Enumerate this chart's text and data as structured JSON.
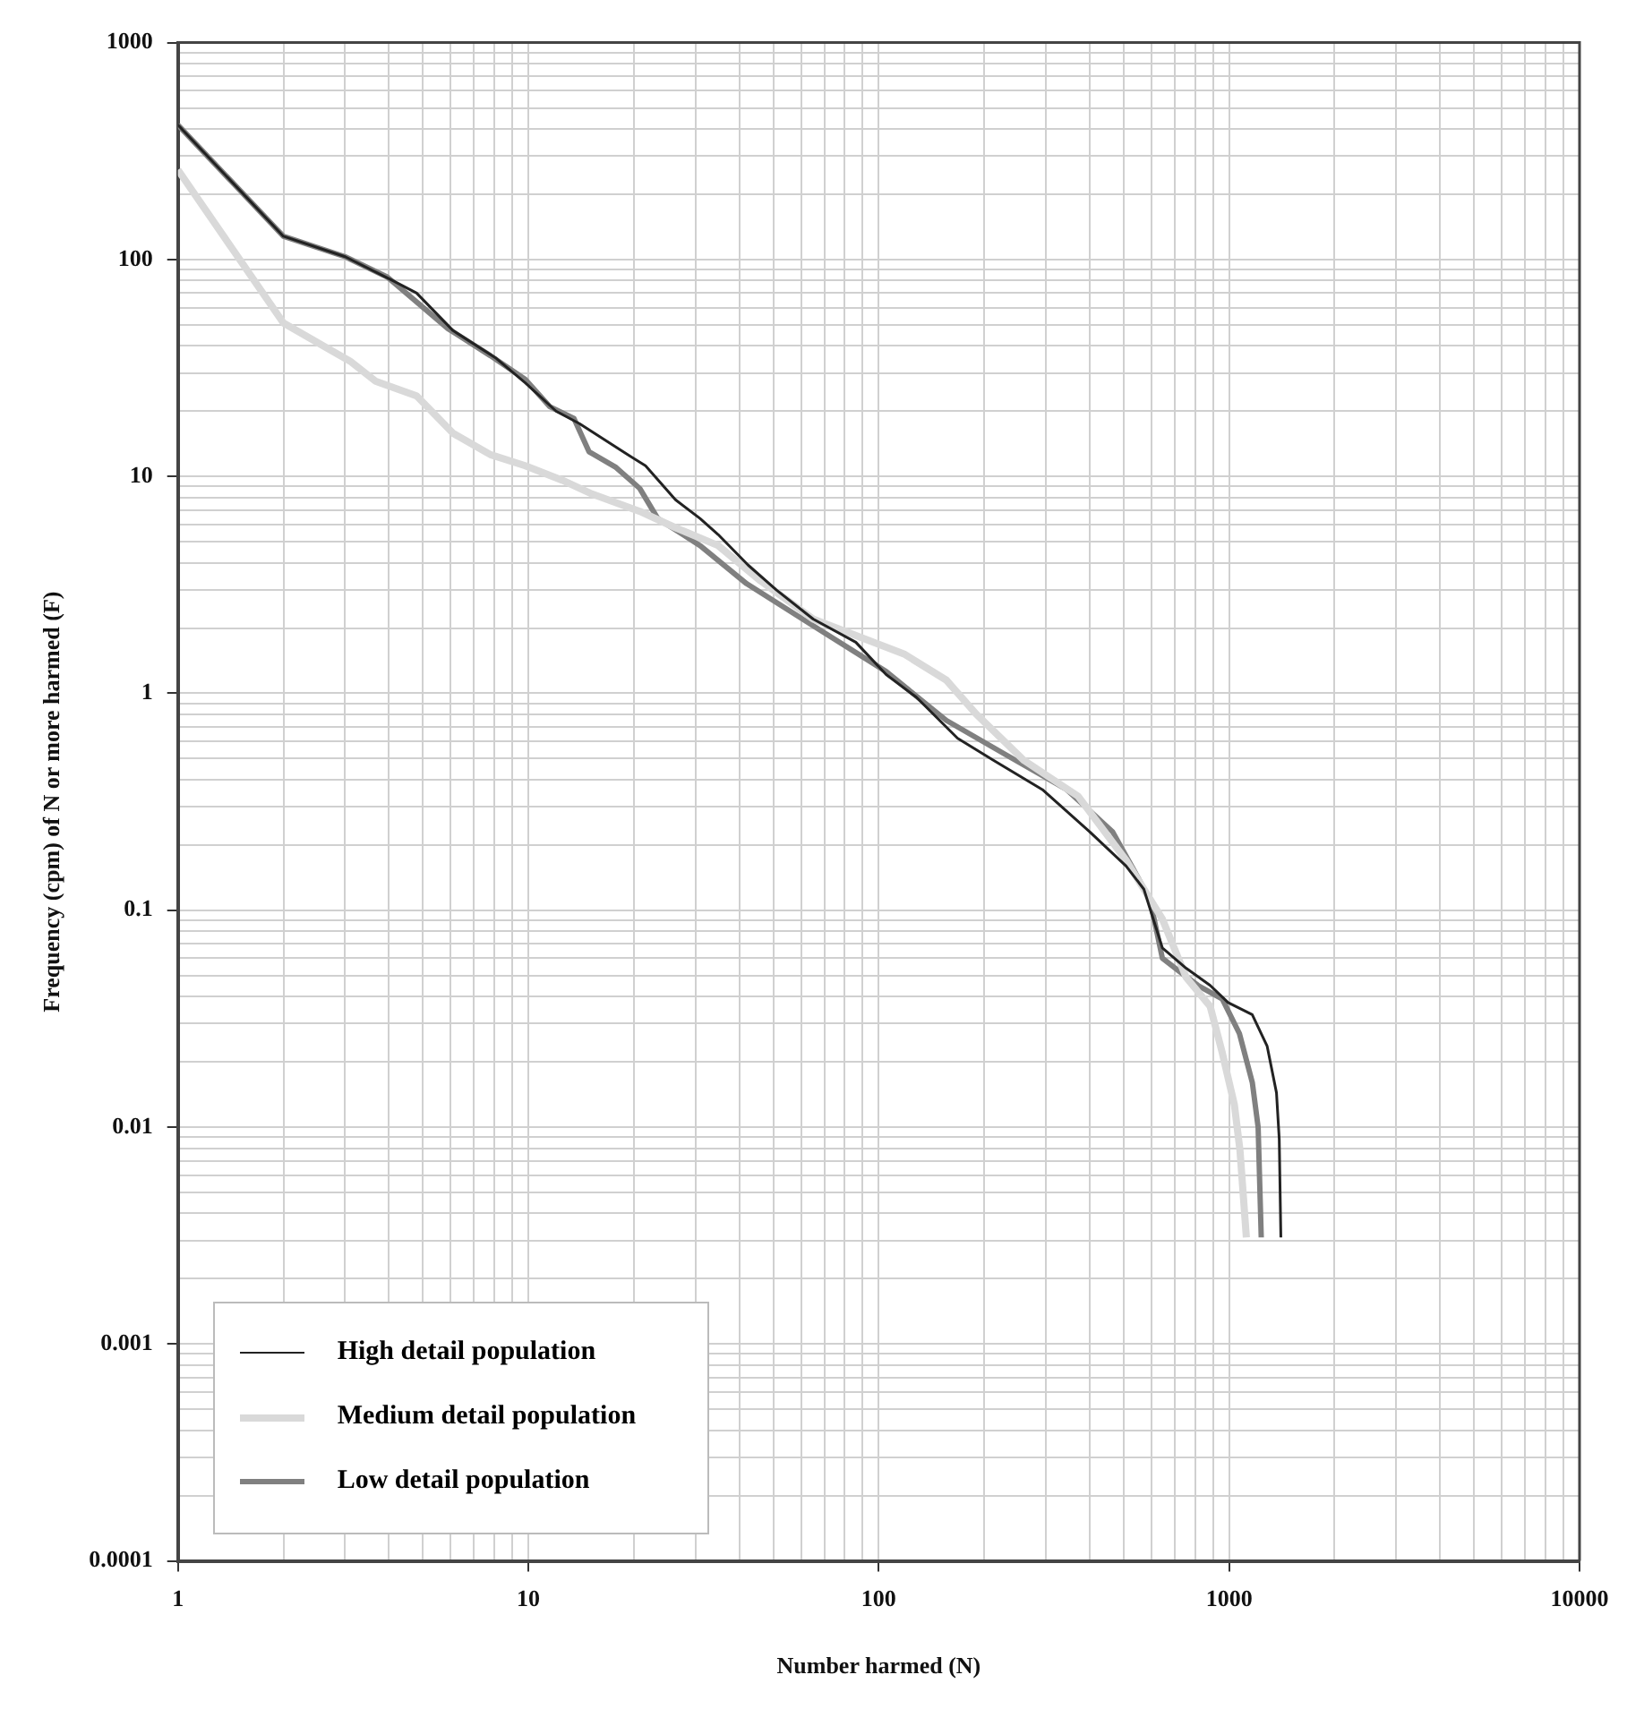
{
  "chart_data": {
    "type": "line",
    "xlabel": "Number harmed (N)",
    "ylabel": "Frequency (cpm) of N or more harmed (F)",
    "log": "xy",
    "grid": true,
    "legend": "bottom left",
    "line_style": "solid",
    "marker": "none",
    "xlim": [
      1,
      10000
    ],
    "ylim": [
      0.0001,
      1000
    ],
    "xticks": [
      1,
      {
        "value": 2,
        "label": null
      },
      {
        "value": 3,
        "label": null
      },
      {
        "value": 4,
        "label": null
      },
      {
        "value": 5,
        "label": null
      },
      {
        "value": 6,
        "label": null
      },
      {
        "value": 7,
        "label": null
      },
      {
        "value": 8,
        "label": null
      },
      {
        "value": 9,
        "label": null
      },
      10,
      {
        "value": 20,
        "label": null
      },
      {
        "value": 30,
        "label": null
      },
      {
        "value": 40,
        "label": null
      },
      {
        "value": 50,
        "label": null
      },
      {
        "value": 60,
        "label": null
      },
      {
        "value": 70,
        "label": null
      },
      {
        "value": 80,
        "label": null
      },
      {
        "value": 90,
        "label": null
      },
      100,
      {
        "value": 200,
        "label": null
      },
      {
        "value": 300,
        "label": null
      },
      {
        "value": 400,
        "label": null
      },
      {
        "value": 500,
        "label": null
      },
      {
        "value": 600,
        "label": null
      },
      {
        "value": 700,
        "label": null
      },
      {
        "value": 800,
        "label": null
      },
      {
        "value": 900,
        "label": null
      },
      1000,
      {
        "value": 2000,
        "label": null
      },
      {
        "value": 3000,
        "label": null
      },
      {
        "value": 4000,
        "label": null
      },
      {
        "value": 5000,
        "label": null
      },
      {
        "value": 6000,
        "label": null
      },
      {
        "value": 7000,
        "label": null
      },
      {
        "value": 8000,
        "label": null
      },
      {
        "value": 9000,
        "label": null
      },
      10000
    ],
    "yticks": [
      0.0001,
      {
        "value": 0.0002,
        "label": null
      },
      {
        "value": 0.0003,
        "label": null
      },
      {
        "value": 0.0004,
        "label": null
      },
      {
        "value": 0.0005,
        "label": null
      },
      {
        "value": 0.0006,
        "label": null
      },
      {
        "value": 0.0007,
        "label": null
      },
      {
        "value": 0.0008,
        "label": null
      },
      {
        "value": 0.0009,
        "label": null
      },
      0.001,
      {
        "value": 0.002,
        "label": null
      },
      {
        "value": 0.003,
        "label": null
      },
      {
        "value": 0.004,
        "label": null
      },
      {
        "value": 0.005,
        "label": null
      },
      {
        "value": 0.006,
        "label": null
      },
      {
        "value": 0.007,
        "label": null
      },
      {
        "value": 0.008,
        "label": null
      },
      {
        "value": 0.009,
        "label": null
      },
      0.01,
      {
        "value": 0.02,
        "label": null
      },
      {
        "value": 0.03,
        "label": null
      },
      {
        "value": 0.04,
        "label": null
      },
      {
        "value": 0.05,
        "label": null
      },
      {
        "value": 0.06,
        "label": null
      },
      {
        "value": 0.07,
        "label": null
      },
      {
        "value": 0.08,
        "label": null
      },
      {
        "value": 0.09,
        "label": null
      },
      0.1,
      {
        "value": 0.2,
        "label": null
      },
      {
        "value": 0.3,
        "label": null
      },
      {
        "value": 0.4,
        "label": null
      },
      {
        "value": 0.5,
        "label": null
      },
      {
        "value": 0.6,
        "label": null
      },
      {
        "value": 0.7,
        "label": null
      },
      {
        "value": 0.8,
        "label": null
      },
      {
        "value": 0.9,
        "label": null
      },
      1,
      {
        "value": 2,
        "label": null
      },
      {
        "value": 3,
        "label": null
      },
      {
        "value": 4,
        "label": null
      },
      {
        "value": 5,
        "label": null
      },
      {
        "value": 6,
        "label": null
      },
      {
        "value": 7,
        "label": null
      },
      {
        "value": 8,
        "label": null
      },
      {
        "value": 9,
        "label": null
      },
      10,
      {
        "value": 20,
        "label": null
      },
      {
        "value": 30,
        "label": null
      },
      {
        "value": 40,
        "label": null
      },
      {
        "value": 50,
        "label": null
      },
      {
        "value": 60,
        "label": null
      },
      {
        "value": 70,
        "label": null
      },
      {
        "value": 80,
        "label": null
      },
      {
        "value": 90,
        "label": null
      },
      100,
      {
        "value": 200,
        "label": null
      },
      {
        "value": 300,
        "label": null
      },
      {
        "value": 400,
        "label": null
      },
      {
        "value": 500,
        "label": null
      },
      {
        "value": 600,
        "label": null
      },
      {
        "value": 700,
        "label": null
      },
      {
        "value": 800,
        "label": null
      },
      {
        "value": 900,
        "label": null
      },
      1000
    ],
    "series": [
      {
        "name": "High detail population",
        "color": "#222222",
        "x": [
          1,
          2,
          3,
          4.1,
          4.8,
          6.1,
          8.1,
          9.8,
          12,
          14,
          19.2,
          21.6,
          26.3,
          30.9,
          34.8,
          42.4,
          51,
          65,
          86,
          105,
          128,
          168,
          213,
          293,
          400,
          508,
          571,
          645,
          754,
          883,
          993,
          1164,
          1284,
          1365,
          1390,
          1405
        ],
        "values": [
          417,
          128,
          103,
          80,
          70,
          47,
          35,
          27,
          20,
          17.5,
          12.6,
          11.2,
          7.8,
          6.4,
          5.4,
          3.9,
          3,
          2.2,
          1.72,
          1.22,
          0.96,
          0.62,
          0.49,
          0.36,
          0.23,
          0.16,
          0.125,
          0.067,
          0.054,
          0.045,
          0.0375,
          0.033,
          0.0236,
          0.0144,
          0.0088,
          0.0031
        ]
      },
      {
        "name": "Medium detail population",
        "color": "#d9d9d9",
        "x": [
          1,
          2,
          2.67,
          3.1,
          3.66,
          4.8,
          6.1,
          7.8,
          9.8,
          12.5,
          15.2,
          20.8,
          26.3,
          34.8,
          46,
          65,
          83,
          118,
          156,
          190,
          260,
          371,
          508,
          645,
          754,
          883,
          956,
          1035,
          1074,
          1120
        ],
        "values": [
          259,
          51,
          39,
          34,
          27.5,
          23.5,
          15.8,
          12.6,
          11.2,
          9.6,
          8.3,
          6.9,
          5.8,
          4.8,
          3.3,
          2.2,
          1.89,
          1.52,
          1.15,
          0.8,
          0.49,
          0.335,
          0.17,
          0.091,
          0.049,
          0.036,
          0.022,
          0.0127,
          0.0078,
          0.0031
        ]
      },
      {
        "name": "Low detail population",
        "color": "#808080",
        "x": [
          1,
          2,
          3,
          3.96,
          5.9,
          7.8,
          9.8,
          11.5,
          13.5,
          14.9,
          17.8,
          20.8,
          23.4,
          30.9,
          42,
          65,
          105,
          156,
          231,
          344,
          465,
          550,
          596,
          645,
          724,
          815,
          956,
          1070,
          1165,
          1210,
          1235
        ],
        "values": [
          417,
          128,
          103,
          83,
          48,
          36,
          28,
          21,
          18.5,
          13,
          11,
          8.8,
          6.4,
          4.8,
          3.2,
          2.05,
          1.26,
          0.75,
          0.52,
          0.36,
          0.23,
          0.141,
          0.11,
          0.06,
          0.052,
          0.045,
          0.039,
          0.027,
          0.016,
          0.01,
          0.0031
        ]
      }
    ]
  }
}
